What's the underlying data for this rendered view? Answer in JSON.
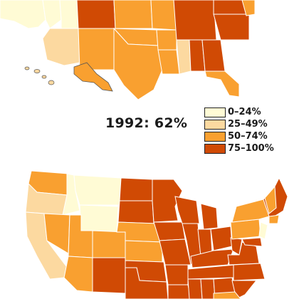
{
  "figure": {
    "headline": "1992: 62%"
  },
  "legend": [
    {
      "label": "0–24%",
      "color": "#FFFBD5"
    },
    {
      "label": "25–49%",
      "color": "#FCD9A0"
    },
    {
      "label": "50–74%",
      "color": "#F9A030"
    },
    {
      "label": "75–100%",
      "color": "#D04A04"
    }
  ],
  "palette": {
    "water": "#ffffff",
    "border": "#ffffff",
    "outline": "#555555"
  }
}
